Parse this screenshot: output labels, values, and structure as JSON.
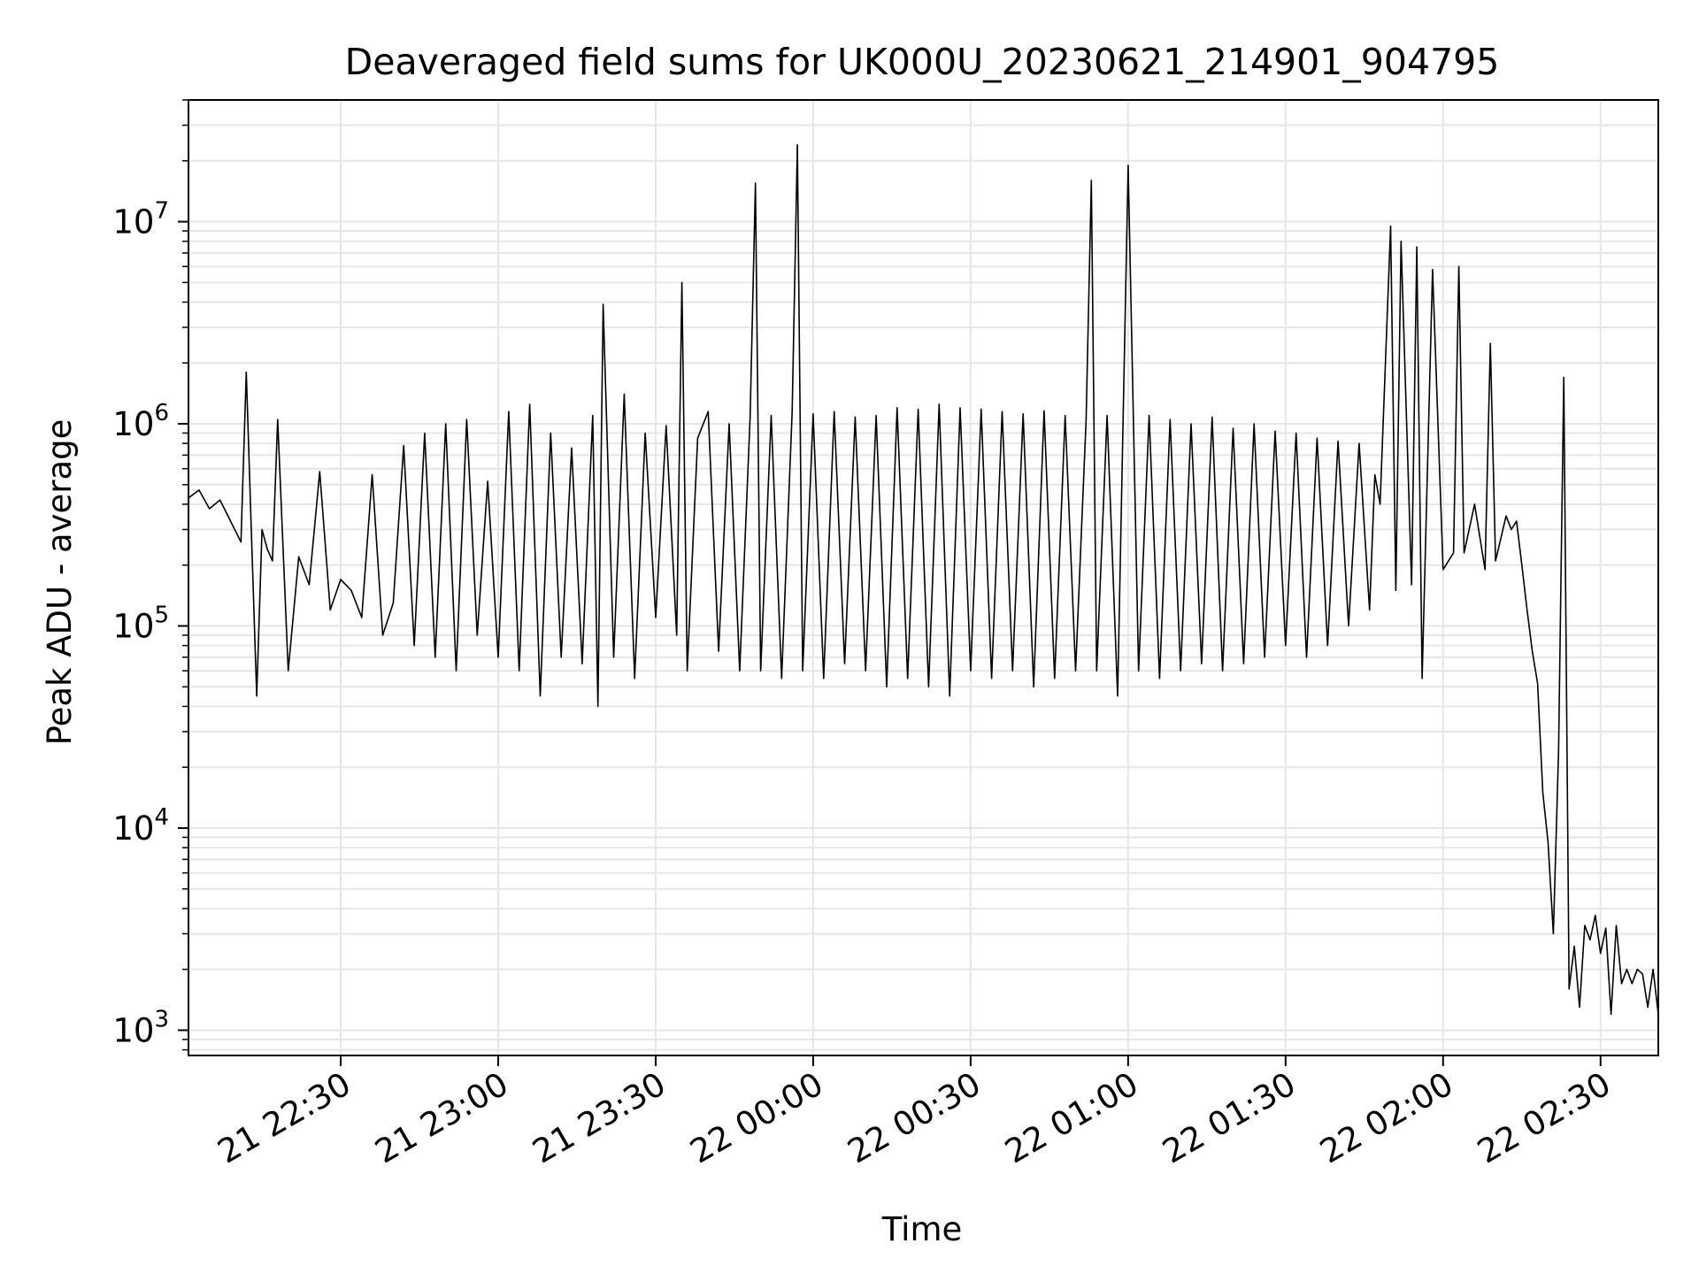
{
  "chart_data": {
    "type": "line",
    "title": "Deaveraged field sums for UK000U_20230621_214901_904795",
    "xlabel": "Time",
    "ylabel": "Peak ADU - average",
    "xscale": "time",
    "yscale": "log",
    "grid": true,
    "legend": "none",
    "line_color": "#000000",
    "grid_color": "#e6e6e6",
    "xlim": [
      "2023-06-21 22:01",
      "2023-06-22 02:41"
    ],
    "ylim": [
      750,
      40000000
    ],
    "x_ticks": [
      {
        "value": "2023-06-21 22:30",
        "label": "21 22:30"
      },
      {
        "value": "2023-06-21 23:00",
        "label": "21 23:00"
      },
      {
        "value": "2023-06-21 23:30",
        "label": "21 23:30"
      },
      {
        "value": "2023-06-22 00:00",
        "label": "22 00:00"
      },
      {
        "value": "2023-06-22 00:30",
        "label": "22 00:30"
      },
      {
        "value": "2023-06-22 01:00",
        "label": "22 01:00"
      },
      {
        "value": "2023-06-22 01:30",
        "label": "22 01:30"
      },
      {
        "value": "2023-06-22 02:00",
        "label": "22 02:00"
      },
      {
        "value": "2023-06-22 02:30",
        "label": "22 02:30"
      }
    ],
    "y_ticks": [
      {
        "value": 1000,
        "base": "10",
        "exp": "3"
      },
      {
        "value": 10000,
        "base": "10",
        "exp": "4"
      },
      {
        "value": 100000,
        "base": "10",
        "exp": "5"
      },
      {
        "value": 1000000,
        "base": "10",
        "exp": "6"
      },
      {
        "value": 10000000,
        "base": "10",
        "exp": "7"
      }
    ],
    "series": [
      {
        "x": [
          "2023-06-21 22:01",
          "2023-06-21 22:03",
          "2023-06-21 22:05",
          "2023-06-21 22:07",
          "2023-06-21 22:09",
          "2023-06-21 22:11",
          "2023-06-21 22:12",
          "2023-06-21 22:13",
          "2023-06-21 22:14",
          "2023-06-21 22:15",
          "2023-06-21 22:16",
          "2023-06-21 22:17",
          "2023-06-21 22:18",
          "2023-06-21 22:20",
          "2023-06-21 22:22",
          "2023-06-21 22:24",
          "2023-06-21 22:26",
          "2023-06-21 22:28",
          "2023-06-21 22:30",
          "2023-06-21 22:32",
          "2023-06-21 22:34",
          "2023-06-21 22:36",
          "2023-06-21 22:38",
          "2023-06-21 22:40",
          "2023-06-21 22:42",
          "2023-06-21 22:44",
          "2023-06-21 22:46",
          "2023-06-21 22:48",
          "2023-06-21 22:50",
          "2023-06-21 22:52",
          "2023-06-21 22:54",
          "2023-06-21 22:56",
          "2023-06-21 22:58",
          "2023-06-21 23:00",
          "2023-06-21 23:02",
          "2023-06-21 23:04",
          "2023-06-21 23:06",
          "2023-06-21 23:08",
          "2023-06-21 23:10",
          "2023-06-21 23:12",
          "2023-06-21 23:14",
          "2023-06-21 23:16",
          "2023-06-21 23:18",
          "2023-06-21 23:19",
          "2023-06-21 23:20",
          "2023-06-21 23:22",
          "2023-06-21 23:24",
          "2023-06-21 23:26",
          "2023-06-21 23:28",
          "2023-06-21 23:30",
          "2023-06-21 23:32",
          "2023-06-21 23:34",
          "2023-06-21 23:35",
          "2023-06-21 23:36",
          "2023-06-21 23:38",
          "2023-06-21 23:40",
          "2023-06-21 23:42",
          "2023-06-21 23:44",
          "2023-06-21 23:46",
          "2023-06-21 23:48",
          "2023-06-21 23:49",
          "2023-06-21 23:50",
          "2023-06-21 23:52",
          "2023-06-21 23:54",
          "2023-06-21 23:56",
          "2023-06-21 23:57",
          "2023-06-21 23:58",
          "2023-06-22 00:00",
          "2023-06-22 00:02",
          "2023-06-22 00:04",
          "2023-06-22 00:06",
          "2023-06-22 00:08",
          "2023-06-22 00:10",
          "2023-06-22 00:12",
          "2023-06-22 00:14",
          "2023-06-22 00:16",
          "2023-06-22 00:18",
          "2023-06-22 00:20",
          "2023-06-22 00:22",
          "2023-06-22 00:24",
          "2023-06-22 00:26",
          "2023-06-22 00:28",
          "2023-06-22 00:30",
          "2023-06-22 00:32",
          "2023-06-22 00:34",
          "2023-06-22 00:36",
          "2023-06-22 00:38",
          "2023-06-22 00:40",
          "2023-06-22 00:42",
          "2023-06-22 00:44",
          "2023-06-22 00:46",
          "2023-06-22 00:48",
          "2023-06-22 00:50",
          "2023-06-22 00:52",
          "2023-06-22 00:53",
          "2023-06-22 00:54",
          "2023-06-22 00:56",
          "2023-06-22 00:58",
          "2023-06-22 01:00",
          "2023-06-22 01:02",
          "2023-06-22 01:04",
          "2023-06-22 01:06",
          "2023-06-22 01:08",
          "2023-06-22 01:10",
          "2023-06-22 01:12",
          "2023-06-22 01:14",
          "2023-06-22 01:16",
          "2023-06-22 01:18",
          "2023-06-22 01:20",
          "2023-06-22 01:22",
          "2023-06-22 01:24",
          "2023-06-22 01:26",
          "2023-06-22 01:28",
          "2023-06-22 01:30",
          "2023-06-22 01:32",
          "2023-06-22 01:34",
          "2023-06-22 01:36",
          "2023-06-22 01:38",
          "2023-06-22 01:40",
          "2023-06-22 01:42",
          "2023-06-22 01:44",
          "2023-06-22 01:46",
          "2023-06-22 01:47",
          "2023-06-22 01:48",
          "2023-06-22 01:50",
          "2023-06-22 01:51",
          "2023-06-22 01:52",
          "2023-06-22 01:54",
          "2023-06-22 01:55",
          "2023-06-22 01:56",
          "2023-06-22 01:58",
          "2023-06-22 02:00",
          "2023-06-22 02:02",
          "2023-06-22 02:03",
          "2023-06-22 02:04",
          "2023-06-22 02:06",
          "2023-06-22 02:08",
          "2023-06-22 02:09",
          "2023-06-22 02:10",
          "2023-06-22 02:12",
          "2023-06-22 02:13",
          "2023-06-22 02:14",
          "2023-06-22 02:15",
          "2023-06-22 02:16",
          "2023-06-22 02:17",
          "2023-06-22 02:18",
          "2023-06-22 02:19",
          "2023-06-22 02:20",
          "2023-06-22 02:21",
          "2023-06-22 02:22",
          "2023-06-22 02:23",
          "2023-06-22 02:24",
          "2023-06-22 02:25",
          "2023-06-22 02:26",
          "2023-06-22 02:27",
          "2023-06-22 02:28",
          "2023-06-22 02:29",
          "2023-06-22 02:30",
          "2023-06-22 02:31",
          "2023-06-22 02:32",
          "2023-06-22 02:33",
          "2023-06-22 02:34",
          "2023-06-22 02:35",
          "2023-06-22 02:36",
          "2023-06-22 02:37",
          "2023-06-22 02:38",
          "2023-06-22 02:39",
          "2023-06-22 02:40",
          "2023-06-22 02:41"
        ],
        "y": [
          430000,
          470000,
          380000,
          420000,
          330000,
          260000,
          1800000,
          280000,
          45000,
          300000,
          240000,
          210000,
          1050000,
          60000,
          220000,
          160000,
          580000,
          120000,
          170000,
          150000,
          110000,
          560000,
          90000,
          130000,
          780000,
          80000,
          900000,
          70000,
          1000000,
          60000,
          1050000,
          90000,
          520000,
          70000,
          1150000,
          60000,
          1250000,
          45000,
          900000,
          70000,
          760000,
          65000,
          1100000,
          40000,
          3900000,
          70000,
          1400000,
          55000,
          900000,
          110000,
          980000,
          90000,
          5000000,
          60000,
          850000,
          1150000,
          75000,
          1000000,
          60000,
          1080000,
          15500000,
          60000,
          1100000,
          55000,
          1150000,
          24000000,
          60000,
          1120000,
          55000,
          1150000,
          65000,
          1080000,
          60000,
          1100000,
          50000,
          1200000,
          55000,
          1180000,
          50000,
          1250000,
          45000,
          1200000,
          60000,
          1180000,
          55000,
          1150000,
          60000,
          1120000,
          50000,
          1160000,
          55000,
          1100000,
          60000,
          1050000,
          16000000,
          60000,
          1100000,
          45000,
          19000000,
          60000,
          1100000,
          55000,
          1050000,
          60000,
          1000000,
          65000,
          1080000,
          60000,
          950000,
          65000,
          1000000,
          70000,
          920000,
          80000,
          900000,
          70000,
          850000,
          80000,
          820000,
          100000,
          800000,
          120000,
          560000,
          400000,
          9500000,
          150000,
          8000000,
          160000,
          7500000,
          55000,
          5800000,
          190000,
          230000,
          6000000,
          230000,
          400000,
          190000,
          2500000,
          210000,
          350000,
          300000,
          330000,
          200000,
          120000,
          75000,
          52000,
          15000,
          8500,
          3000,
          24000,
          1700000,
          1600,
          2600,
          1300,
          3300,
          2800,
          3700,
          2400,
          3200,
          1200,
          3300,
          1700,
          2000,
          1700,
          2000,
          1900,
          1300,
          2000,
          1200
        ]
      }
    ]
  }
}
